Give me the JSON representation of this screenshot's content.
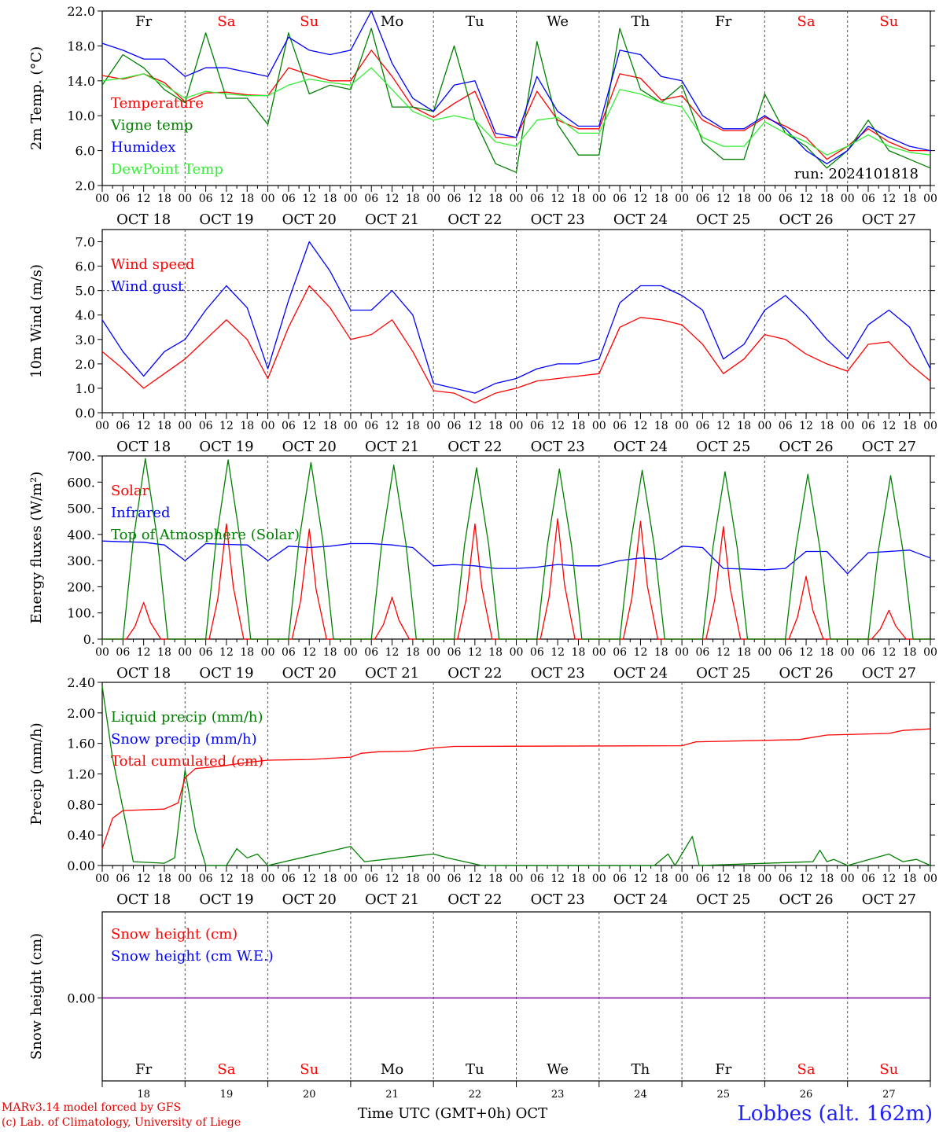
{
  "colors": {
    "red": "#ff0000",
    "green": "#008000",
    "blue": "#0000ff",
    "lightgreen": "#33ee33",
    "purple": "#8000a0",
    "weekday": "#000000",
    "weekend": "#ff0000"
  },
  "days": [
    {
      "abbr": "Fr",
      "date": "OCT 18",
      "num": "18",
      "weekend": false
    },
    {
      "abbr": "Sa",
      "date": "OCT 19",
      "num": "19",
      "weekend": true
    },
    {
      "abbr": "Su",
      "date": "OCT 20",
      "num": "20",
      "weekend": true
    },
    {
      "abbr": "Mo",
      "date": "OCT 21",
      "num": "21",
      "weekend": false
    },
    {
      "abbr": "Tu",
      "date": "OCT 22",
      "num": "22",
      "weekend": false
    },
    {
      "abbr": "We",
      "date": "OCT 23",
      "num": "23",
      "weekend": false
    },
    {
      "abbr": "Th",
      "date": "OCT 24",
      "num": "24",
      "weekend": false
    },
    {
      "abbr": "Fr",
      "date": "OCT 25",
      "num": "25",
      "weekend": false
    },
    {
      "abbr": "Sa",
      "date": "OCT 26",
      "num": "26",
      "weekend": true
    },
    {
      "abbr": "Su",
      "date": "OCT 27",
      "num": "27",
      "weekend": true
    }
  ],
  "hour_ticks": [
    "00",
    "06",
    "12",
    "18"
  ],
  "final_tick": "00",
  "run_label": "run: 2024101818",
  "footer": {
    "model": "MARv3.14 model forced by GFS",
    "lab": "(c) Lab. of Climatology, University of Liege",
    "xlabel": "Time UTC (GMT+0h) OCT",
    "station": "Lobbes (alt. 162m)"
  },
  "chart_data": [
    {
      "type": "line",
      "id": "temp",
      "ylabel": "2m Temp. (°C)",
      "ylim": [
        2,
        22
      ],
      "yticks": [
        "2.0",
        "6.0",
        "10.0",
        "14.0",
        "18.0",
        "22.0"
      ],
      "tickvals": [
        2,
        6,
        10,
        14,
        18,
        22
      ],
      "x_hours": [
        0,
        6,
        12,
        18,
        24,
        30,
        36,
        42,
        48,
        54,
        60,
        66,
        72,
        78,
        84,
        90,
        96,
        102,
        108,
        114,
        120,
        126,
        132,
        138,
        144,
        150,
        156,
        162,
        168,
        174,
        180,
        186,
        192,
        198,
        204,
        210,
        216,
        222,
        228,
        234,
        240
      ],
      "series": [
        {
          "name": "Temperature",
          "color": "red",
          "values": [
            14.6,
            14.2,
            14.8,
            13.8,
            11.6,
            12.6,
            12.7,
            12.4,
            12.3,
            15.5,
            14.7,
            14.0,
            14.0,
            17.5,
            14.5,
            11.0,
            9.8,
            11.4,
            12.8,
            7.5,
            7.5,
            12.8,
            9.5,
            8.5,
            8.5,
            14.8,
            14.3,
            11.8,
            12.3,
            9.5,
            8.3,
            8.3,
            9.8,
            8.8,
            7.5,
            5.0,
            6.5,
            8.5,
            7.0,
            6.0,
            6.0
          ]
        },
        {
          "name": "Vigne temp",
          "color": "green",
          "values": [
            13.5,
            17.0,
            15.5,
            13.0,
            11.5,
            19.5,
            12.0,
            12.0,
            9.0,
            19.5,
            12.5,
            13.5,
            13.0,
            20.0,
            11.0,
            11.0,
            10.5,
            18.0,
            9.5,
            4.5,
            3.5,
            18.5,
            9.0,
            5.5,
            5.5,
            20.0,
            13.0,
            11.5,
            13.5,
            7.0,
            5.0,
            5.0,
            12.5,
            8.0,
            6.5,
            4.0,
            6.0,
            9.5,
            6.0,
            5.0,
            4.0
          ]
        },
        {
          "name": "Humidex",
          "color": "blue",
          "values": [
            18.3,
            17.5,
            16.5,
            16.5,
            14.5,
            15.5,
            15.5,
            15.0,
            14.5,
            19.0,
            17.5,
            17.0,
            17.5,
            22.0,
            16.0,
            12.0,
            10.5,
            13.5,
            14.0,
            8.0,
            7.5,
            14.5,
            10.5,
            8.8,
            8.8,
            17.5,
            17.0,
            14.5,
            14.0,
            10.0,
            8.5,
            8.5,
            10.0,
            8.5,
            6.0,
            4.5,
            6.0,
            8.8,
            7.5,
            6.5,
            6.0
          ]
        },
        {
          "name": "DewPoint Temp",
          "color": "lightgreen",
          "values": [
            14.0,
            14.3,
            14.8,
            13.5,
            12.0,
            12.8,
            12.5,
            12.3,
            12.3,
            13.5,
            14.2,
            13.8,
            13.5,
            15.5,
            13.0,
            10.5,
            9.5,
            10.0,
            9.5,
            7.0,
            6.5,
            9.5,
            9.8,
            8.0,
            8.0,
            13.0,
            12.5,
            11.5,
            11.0,
            7.5,
            6.5,
            6.5,
            9.3,
            8.0,
            7.0,
            5.5,
            6.5,
            7.8,
            6.5,
            5.8,
            5.5
          ]
        }
      ]
    },
    {
      "type": "line",
      "id": "wind",
      "ylabel": "10m Wind (m/s)",
      "ylim": [
        0,
        7.5
      ],
      "yticks": [
        "0.0",
        "1.0",
        "2.0",
        "3.0",
        "4.0",
        "5.0",
        "6.0",
        "7.0"
      ],
      "tickvals": [
        0,
        1,
        2,
        3,
        4,
        5,
        6,
        7
      ],
      "ref_line": 5.0,
      "x_hours": [
        0,
        6,
        12,
        18,
        24,
        30,
        36,
        42,
        48,
        54,
        60,
        66,
        72,
        78,
        84,
        90,
        96,
        102,
        108,
        114,
        120,
        126,
        132,
        138,
        144,
        150,
        156,
        162,
        168,
        174,
        180,
        186,
        192,
        198,
        204,
        210,
        216,
        222,
        228,
        234,
        240
      ],
      "series": [
        {
          "name": "Wind speed",
          "color": "red",
          "values": [
            2.5,
            1.8,
            1.0,
            1.6,
            2.2,
            3.0,
            3.8,
            3.0,
            1.4,
            3.5,
            5.2,
            4.3,
            3.0,
            3.2,
            3.8,
            2.5,
            0.9,
            0.8,
            0.4,
            0.8,
            1.0,
            1.3,
            1.4,
            1.5,
            1.6,
            3.5,
            3.9,
            3.8,
            3.6,
            2.8,
            1.6,
            2.2,
            3.2,
            3.0,
            2.4,
            2.0,
            1.7,
            2.8,
            2.9,
            2.0,
            1.3
          ]
        },
        {
          "name": "Wind gust",
          "color": "blue",
          "values": [
            3.8,
            2.5,
            1.5,
            2.5,
            3.0,
            4.2,
            5.2,
            4.3,
            1.8,
            4.6,
            7.0,
            5.8,
            4.2,
            4.2,
            5.0,
            4.0,
            1.2,
            1.0,
            0.8,
            1.2,
            1.4,
            1.8,
            2.0,
            2.0,
            2.2,
            4.5,
            5.2,
            5.2,
            4.8,
            4.2,
            2.2,
            2.8,
            4.2,
            4.8,
            4.0,
            3.0,
            2.2,
            3.6,
            4.2,
            3.5,
            1.8
          ]
        }
      ]
    },
    {
      "type": "line",
      "id": "energy",
      "ylabel": "Energy fluxes (W/m²)",
      "ylim": [
        0,
        700
      ],
      "yticks": [
        "0.",
        "100.",
        "200.",
        "300.",
        "400.",
        "500.",
        "600.",
        "700."
      ],
      "tickvals": [
        0,
        100,
        200,
        300,
        400,
        500,
        600,
        700
      ],
      "series": [
        {
          "name": "Solar",
          "color": "red",
          "daily_peaks": [
            140,
            440,
            420,
            160,
            440,
            460,
            450,
            430,
            240,
            110
          ]
        },
        {
          "name": "Infrared",
          "color": "blue",
          "values": [
            375,
            372,
            370,
            360,
            300,
            365,
            362,
            360,
            300,
            355,
            350,
            355,
            365,
            365,
            360,
            350,
            280,
            285,
            280,
            270,
            270,
            275,
            285,
            280,
            280,
            300,
            310,
            305,
            355,
            350,
            270,
            268,
            265,
            270,
            335,
            335,
            250,
            330,
            335,
            340,
            310
          ]
        },
        {
          "name": "Top of Atmosphere (Solar)",
          "color": "green",
          "daily_peaks": [
            690,
            685,
            675,
            665,
            655,
            650,
            645,
            640,
            630,
            625
          ]
        }
      ]
    },
    {
      "type": "line",
      "id": "precip",
      "ylabel": "Precip (mm/h)",
      "ylim": [
        0,
        2.4
      ],
      "yticks": [
        "0.00",
        "0.40",
        "0.80",
        "1.20",
        "1.60",
        "2.00",
        "2.40"
      ],
      "tickvals": [
        0,
        0.4,
        0.8,
        1.2,
        1.6,
        2.0,
        2.4
      ],
      "series": [
        {
          "name": "Liquid precip (mm/h)",
          "color": "green",
          "points": [
            [
              0,
              2.35
            ],
            [
              3,
              1.4
            ],
            [
              6,
              0.75
            ],
            [
              9,
              0.05
            ],
            [
              18,
              0.03
            ],
            [
              21,
              0.1
            ],
            [
              24,
              1.25
            ],
            [
              27,
              0.45
            ],
            [
              30,
              0.0
            ],
            [
              36,
              0.0
            ],
            [
              39,
              0.22
            ],
            [
              42,
              0.1
            ],
            [
              45,
              0.15
            ],
            [
              48,
              0.0
            ],
            [
              72,
              0.25
            ],
            [
              76,
              0.05
            ],
            [
              96,
              0.15
            ],
            [
              100,
              0.1
            ],
            [
              110,
              0.0
            ],
            [
              160,
              0.0
            ],
            [
              164,
              0.15
            ],
            [
              166,
              0.0
            ],
            [
              171,
              0.38
            ],
            [
              173,
              0.0
            ],
            [
              206,
              0.05
            ],
            [
              208,
              0.2
            ],
            [
              210,
              0.05
            ],
            [
              212,
              0.08
            ],
            [
              216,
              0.0
            ],
            [
              228,
              0.15
            ],
            [
              232,
              0.05
            ],
            [
              236,
              0.08
            ],
            [
              240,
              0.0
            ]
          ]
        },
        {
          "name": "Snow precip (mm/h)",
          "color": "blue",
          "points": []
        },
        {
          "name": "Total cumulated (cm)",
          "color": "red",
          "points": [
            [
              0,
              0.22
            ],
            [
              3,
              0.62
            ],
            [
              6,
              0.72
            ],
            [
              18,
              0.74
            ],
            [
              22,
              0.82
            ],
            [
              24,
              1.15
            ],
            [
              27,
              1.27
            ],
            [
              34,
              1.3
            ],
            [
              42,
              1.35
            ],
            [
              48,
              1.38
            ],
            [
              60,
              1.39
            ],
            [
              72,
              1.42
            ],
            [
              75,
              1.47
            ],
            [
              80,
              1.49
            ],
            [
              90,
              1.5
            ],
            [
              96,
              1.54
            ],
            [
              102,
              1.56
            ],
            [
              168,
              1.57
            ],
            [
              172,
              1.62
            ],
            [
              202,
              1.65
            ],
            [
              210,
              1.71
            ],
            [
              228,
              1.73
            ],
            [
              232,
              1.77
            ],
            [
              240,
              1.79
            ]
          ]
        }
      ]
    },
    {
      "type": "line",
      "id": "snow",
      "ylabel": "Snow height (cm)",
      "ytick": "0.00",
      "series": [
        {
          "name": "Snow height (cm)",
          "color": "red",
          "values": [
            0,
            0
          ]
        },
        {
          "name": "Snow height (cm W.E.)",
          "color": "blue",
          "values": [
            0,
            0
          ]
        }
      ]
    }
  ]
}
